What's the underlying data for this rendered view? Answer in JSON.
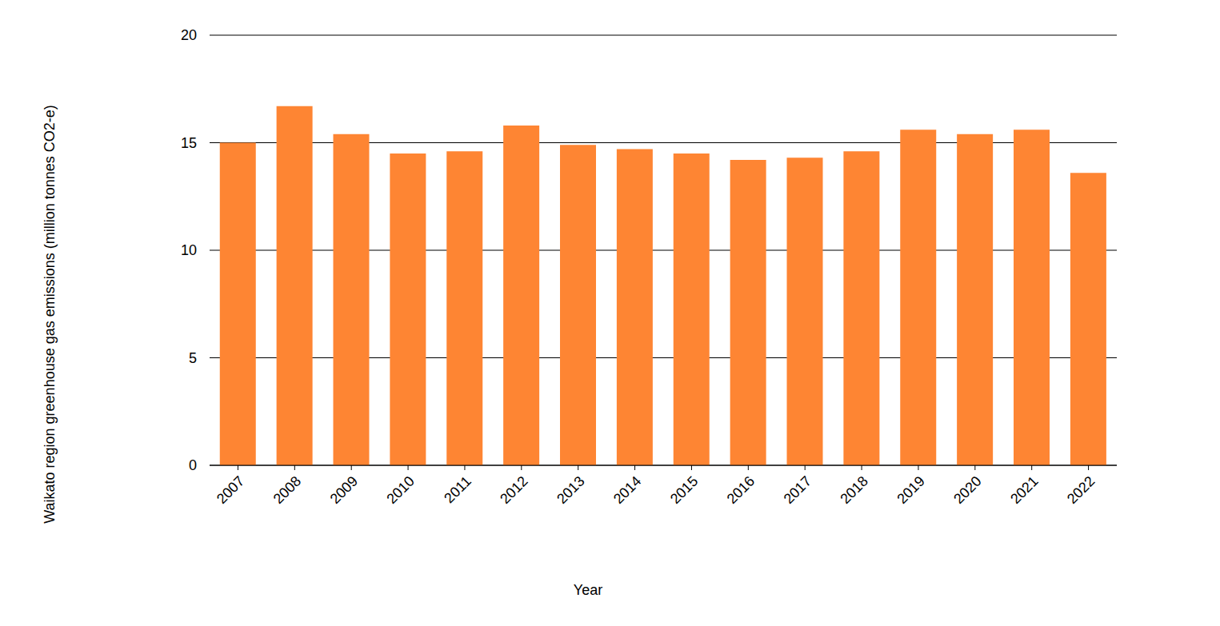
{
  "chart_data": {
    "type": "bar",
    "x_label": "Year",
    "y_label": "Waikato region greenhouse gas emissions (million tonnes CO2-e)",
    "categories": [
      "2007",
      "2008",
      "2009",
      "2010",
      "2011",
      "2012",
      "2013",
      "2014",
      "2015",
      "2016",
      "2017",
      "2018",
      "2019",
      "2020",
      "2021",
      "2022"
    ],
    "values": [
      15.0,
      16.7,
      15.4,
      14.5,
      14.6,
      15.8,
      14.9,
      14.7,
      14.5,
      14.2,
      14.3,
      14.6,
      15.6,
      15.4,
      15.6,
      13.6
    ],
    "color": "#fe8533",
    "ylim": [
      0,
      20
    ],
    "yticks": [
      0,
      5,
      10,
      15,
      20
    ],
    "grid": true
  }
}
